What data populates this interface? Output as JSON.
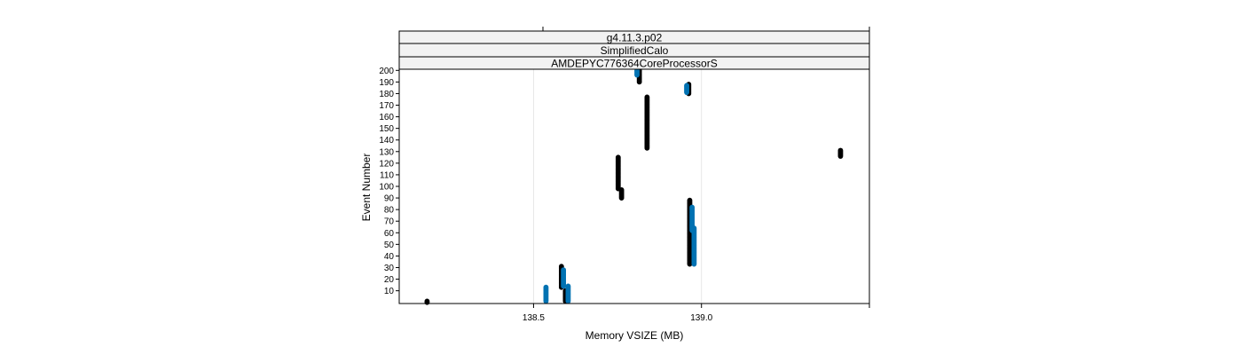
{
  "chart_data": {
    "type": "scatter",
    "strips": [
      "g4.11.3.p02",
      "SimplifiedCalo",
      "AMDEPYC776364CoreProcessorS"
    ],
    "xlabel": "Memory VSIZE (MB)",
    "ylabel": "Event Number",
    "xlim": [
      138.1,
      139.5
    ],
    "ylim": [
      -1,
      201
    ],
    "x_ticks": [
      138.5,
      139.0
    ],
    "x_tick_labels": [
      "138.5",
      "139.0"
    ],
    "y_ticks": [
      10,
      20,
      30,
      40,
      50,
      60,
      70,
      80,
      90,
      100,
      110,
      120,
      130,
      140,
      150,
      160,
      170,
      180,
      190,
      200
    ],
    "y_tick_labels": [
      "10",
      "20",
      "30",
      "40",
      "50",
      "60",
      "70",
      "80",
      "90",
      "100",
      "110",
      "120",
      "130",
      "140",
      "150",
      "160",
      "170",
      "180",
      "190",
      "200"
    ],
    "grid": "vertical",
    "colors": {
      "series_a": "#000000",
      "series_b": "#0072b2",
      "strip_bg": "#f2f2f2"
    },
    "series": [
      {
        "color": "#000000",
        "segments": [
          {
            "x": 138.183,
            "y": [
              0,
              1
            ]
          },
          {
            "x": 138.583,
            "y": [
              13,
              31
            ]
          },
          {
            "x": 138.595,
            "y": [
              1,
              10
            ]
          },
          {
            "x": 138.752,
            "y": [
              98,
              125
            ]
          },
          {
            "x": 138.762,
            "y": [
              90,
              97
            ]
          },
          {
            "x": 138.815,
            "y": [
              190,
              200
            ]
          },
          {
            "x": 138.838,
            "y": [
              133,
              177
            ]
          },
          {
            "x": 138.962,
            "y": [
              180,
              188
            ]
          },
          {
            "x": 138.965,
            "y": [
              33,
              88
            ]
          },
          {
            "x": 139.414,
            "y": [
              126,
              131
            ]
          }
        ]
      },
      {
        "color": "#0072b2",
        "segments": [
          {
            "x": 138.537,
            "y": [
              1,
              13
            ]
          },
          {
            "x": 138.589,
            "y": [
              14,
              28
            ]
          },
          {
            "x": 138.603,
            "y": [
              1,
              14
            ]
          },
          {
            "x": 138.808,
            "y": [
              196,
              200
            ]
          },
          {
            "x": 138.956,
            "y": [
              181,
              187
            ]
          },
          {
            "x": 138.978,
            "y": [
              33,
              64
            ]
          },
          {
            "x": 138.972,
            "y": [
              62,
              82
            ]
          }
        ]
      }
    ]
  }
}
